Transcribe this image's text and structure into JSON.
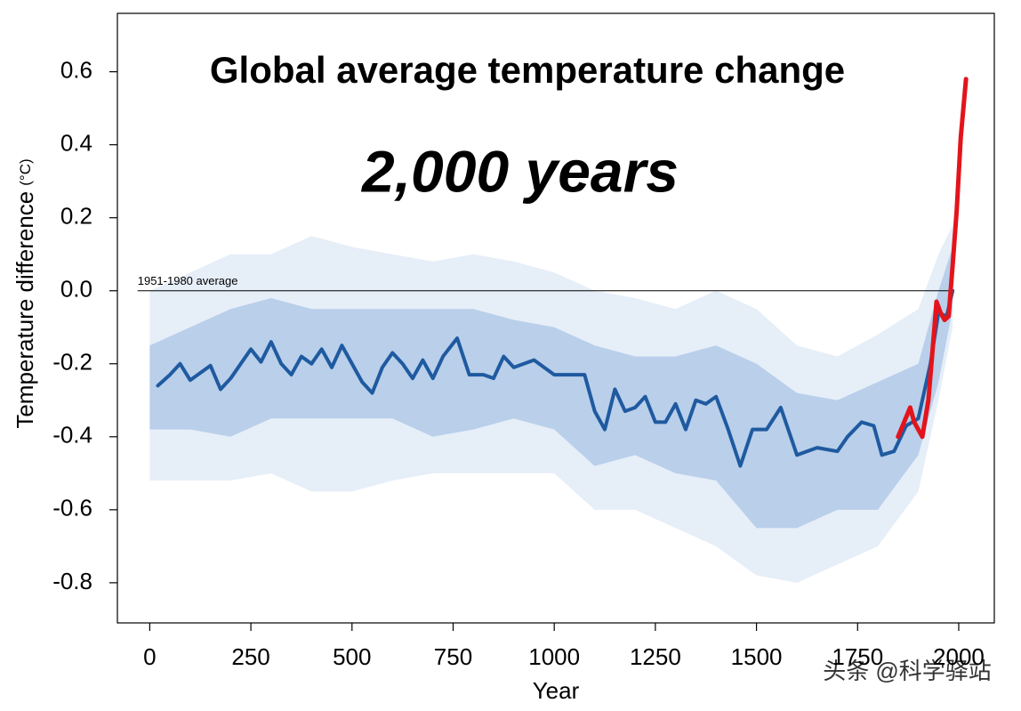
{
  "chart_data": {
    "type": "line",
    "title": "Global average temperature change",
    "subtitle": "2,000 years",
    "xlabel": "Year",
    "ylabel": "Temperature difference",
    "ylabel_unit": "(°C)",
    "reference_label": "1951-1980 average",
    "reference_value": 0,
    "watermark": "头条 @科学驿站",
    "xlim": [
      -80,
      2088
    ],
    "ylim": [
      -0.91,
      0.76
    ],
    "xticks": [
      0,
      250,
      500,
      750,
      1000,
      1250,
      1500,
      1750,
      2000
    ],
    "yticks": [
      -0.8,
      -0.6,
      -0.4,
      -0.2,
      {
        "value": 0,
        "label": "0.0"
      },
      0.2,
      0.4,
      0.6
    ],
    "bands": [
      {
        "color": "#e6eef8",
        "x": [
          0,
          100,
          200,
          300,
          400,
          500,
          600,
          700,
          800,
          900,
          1000,
          1100,
          1200,
          1300,
          1400,
          1500,
          1600,
          1700,
          1800,
          1900,
          1950,
          1985
        ],
        "upper": [
          0.0,
          0.05,
          0.1,
          0.1,
          0.15,
          0.12,
          0.1,
          0.08,
          0.1,
          0.08,
          0.05,
          0.0,
          -0.02,
          -0.05,
          0.0,
          -0.05,
          -0.15,
          -0.18,
          -0.12,
          -0.05,
          0.1,
          0.18
        ],
        "lower": [
          -0.52,
          -0.52,
          -0.52,
          -0.5,
          -0.55,
          -0.55,
          -0.52,
          -0.5,
          -0.5,
          -0.5,
          -0.5,
          -0.6,
          -0.6,
          -0.65,
          -0.7,
          -0.78,
          -0.8,
          -0.75,
          -0.7,
          -0.55,
          -0.3,
          -0.1
        ]
      },
      {
        "color": "#b9cfea",
        "x": [
          0,
          100,
          200,
          300,
          400,
          500,
          600,
          700,
          800,
          900,
          1000,
          1100,
          1200,
          1300,
          1400,
          1500,
          1600,
          1700,
          1800,
          1900,
          1950,
          1985
        ],
        "upper": [
          -0.15,
          -0.1,
          -0.05,
          -0.02,
          -0.05,
          -0.05,
          -0.05,
          -0.05,
          -0.05,
          -0.08,
          -0.1,
          -0.15,
          -0.18,
          -0.18,
          -0.15,
          -0.2,
          -0.28,
          -0.3,
          -0.25,
          -0.2,
          0.0,
          0.12
        ],
        "lower": [
          -0.38,
          -0.38,
          -0.4,
          -0.35,
          -0.35,
          -0.35,
          -0.35,
          -0.4,
          -0.38,
          -0.35,
          -0.38,
          -0.48,
          -0.45,
          -0.5,
          -0.52,
          -0.65,
          -0.65,
          -0.6,
          -0.6,
          -0.45,
          -0.25,
          -0.05
        ]
      }
    ],
    "series": [
      {
        "color": "#1f5aa0",
        "x": [
          20,
          50,
          75,
          100,
          150,
          175,
          200,
          250,
          275,
          300,
          325,
          350,
          375,
          400,
          425,
          450,
          475,
          500,
          525,
          550,
          575,
          600,
          625,
          650,
          675,
          700,
          725,
          760,
          790,
          825,
          850,
          875,
          900,
          950,
          1000,
          1050,
          1075,
          1100,
          1125,
          1150,
          1175,
          1200,
          1225,
          1250,
          1275,
          1300,
          1325,
          1350,
          1375,
          1400,
          1430,
          1460,
          1490,
          1525,
          1560,
          1600,
          1650,
          1700,
          1725,
          1760,
          1790,
          1810,
          1840,
          1870,
          1900,
          1930,
          1950,
          1970,
          1985
        ],
        "values": [
          -0.26,
          -0.23,
          -0.2,
          -0.245,
          -0.205,
          -0.27,
          -0.24,
          -0.16,
          -0.195,
          -0.14,
          -0.2,
          -0.23,
          -0.18,
          -0.2,
          -0.16,
          -0.21,
          -0.15,
          -0.2,
          -0.25,
          -0.28,
          -0.21,
          -0.17,
          -0.2,
          -0.24,
          -0.19,
          -0.24,
          -0.18,
          -0.13,
          -0.23,
          -0.23,
          -0.24,
          -0.18,
          -0.21,
          -0.19,
          -0.23,
          -0.23,
          -0.23,
          -0.33,
          -0.38,
          -0.27,
          -0.33,
          -0.32,
          -0.29,
          -0.36,
          -0.36,
          -0.31,
          -0.38,
          -0.3,
          -0.31,
          -0.29,
          -0.38,
          -0.48,
          -0.38,
          -0.38,
          -0.32,
          -0.45,
          -0.43,
          -0.44,
          -0.4,
          -0.36,
          -0.37,
          -0.45,
          -0.44,
          -0.37,
          -0.35,
          -0.2,
          -0.06,
          -0.07,
          0.0
        ]
      },
      {
        "color": "#e3141b",
        "x": [
          1850,
          1880,
          1890,
          1910,
          1925,
          1940,
          1945,
          1955,
          1965,
          1975,
          1985,
          1995,
          2005,
          2018
        ],
        "values": [
          -0.4,
          -0.32,
          -0.36,
          -0.4,
          -0.3,
          -0.1,
          -0.03,
          -0.06,
          -0.08,
          -0.07,
          0.07,
          0.22,
          0.42,
          0.58
        ]
      }
    ]
  }
}
